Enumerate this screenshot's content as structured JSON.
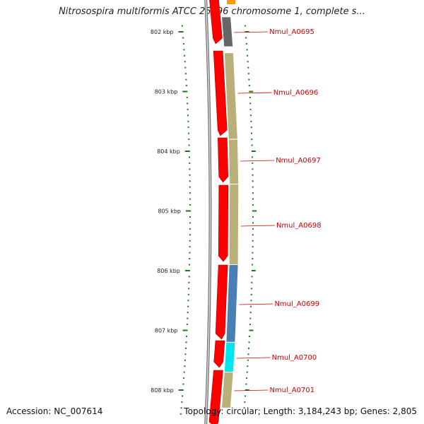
{
  "title": "Nitrosospira multiformis ATCC 25196 chromosome 1, complete s...",
  "footer": {
    "accession": "Accession: NC_007614",
    "topology": "Topology: circular; Length: 3,184,243 bp; Genes: 2,805"
  },
  "scale": {
    "unit": "kbp",
    "ticks": [
      "802 kbp",
      "803 kbp",
      "804 kbp",
      "805 kbp",
      "806 kbp",
      "807 kbp",
      "808 kbp"
    ]
  },
  "genes": [
    {
      "name": "Nmul_A0695",
      "color": "#666666",
      "start_kbp": 801.75,
      "end_kbp": 802.25
    },
    {
      "name": "Nmul_A0696",
      "color": "#b8b078",
      "start_kbp": 802.35,
      "end_kbp": 803.8
    },
    {
      "name": "Nmul_A0697",
      "color": "#b8b078",
      "start_kbp": 803.8,
      "end_kbp": 804.55
    },
    {
      "name": "Nmul_A0698",
      "color": "#b8b078",
      "start_kbp": 804.55,
      "end_kbp": 805.9
    },
    {
      "name": "Nmul_A0699",
      "color": "#4a7fb5",
      "start_kbp": 805.9,
      "end_kbp": 807.2
    },
    {
      "name": "Nmul_A0700",
      "color": "#00e5ee",
      "start_kbp": 807.2,
      "end_kbp": 807.7
    },
    {
      "name": "Nmul_A0701",
      "color": "#b8b078",
      "start_kbp": 807.7,
      "end_kbp": 808.3
    }
  ],
  "colors": {
    "cds_arrow": "#ff0000",
    "backbone": "#888888",
    "tick": "#1a7a1a",
    "label": "#cc0000",
    "orange_feature": "#ff9900"
  }
}
